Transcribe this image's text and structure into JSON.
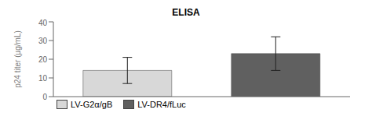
{
  "chart_data": {
    "type": "bar",
    "title": "ELISA",
    "y_label": "p24 titer (µg/mL)",
    "categories": [
      "LV-G2α/gB",
      "LV-DR4/fLuc"
    ],
    "values": [
      14,
      23
    ],
    "errors": [
      7,
      9
    ],
    "colors": [
      "#d8d8d8",
      "#606060"
    ],
    "ylim": [
      0,
      40
    ],
    "yticks": [
      0,
      10,
      20,
      30,
      40
    ],
    "legend": "lower left",
    "tick_labels": "y",
    "grid": false
  }
}
